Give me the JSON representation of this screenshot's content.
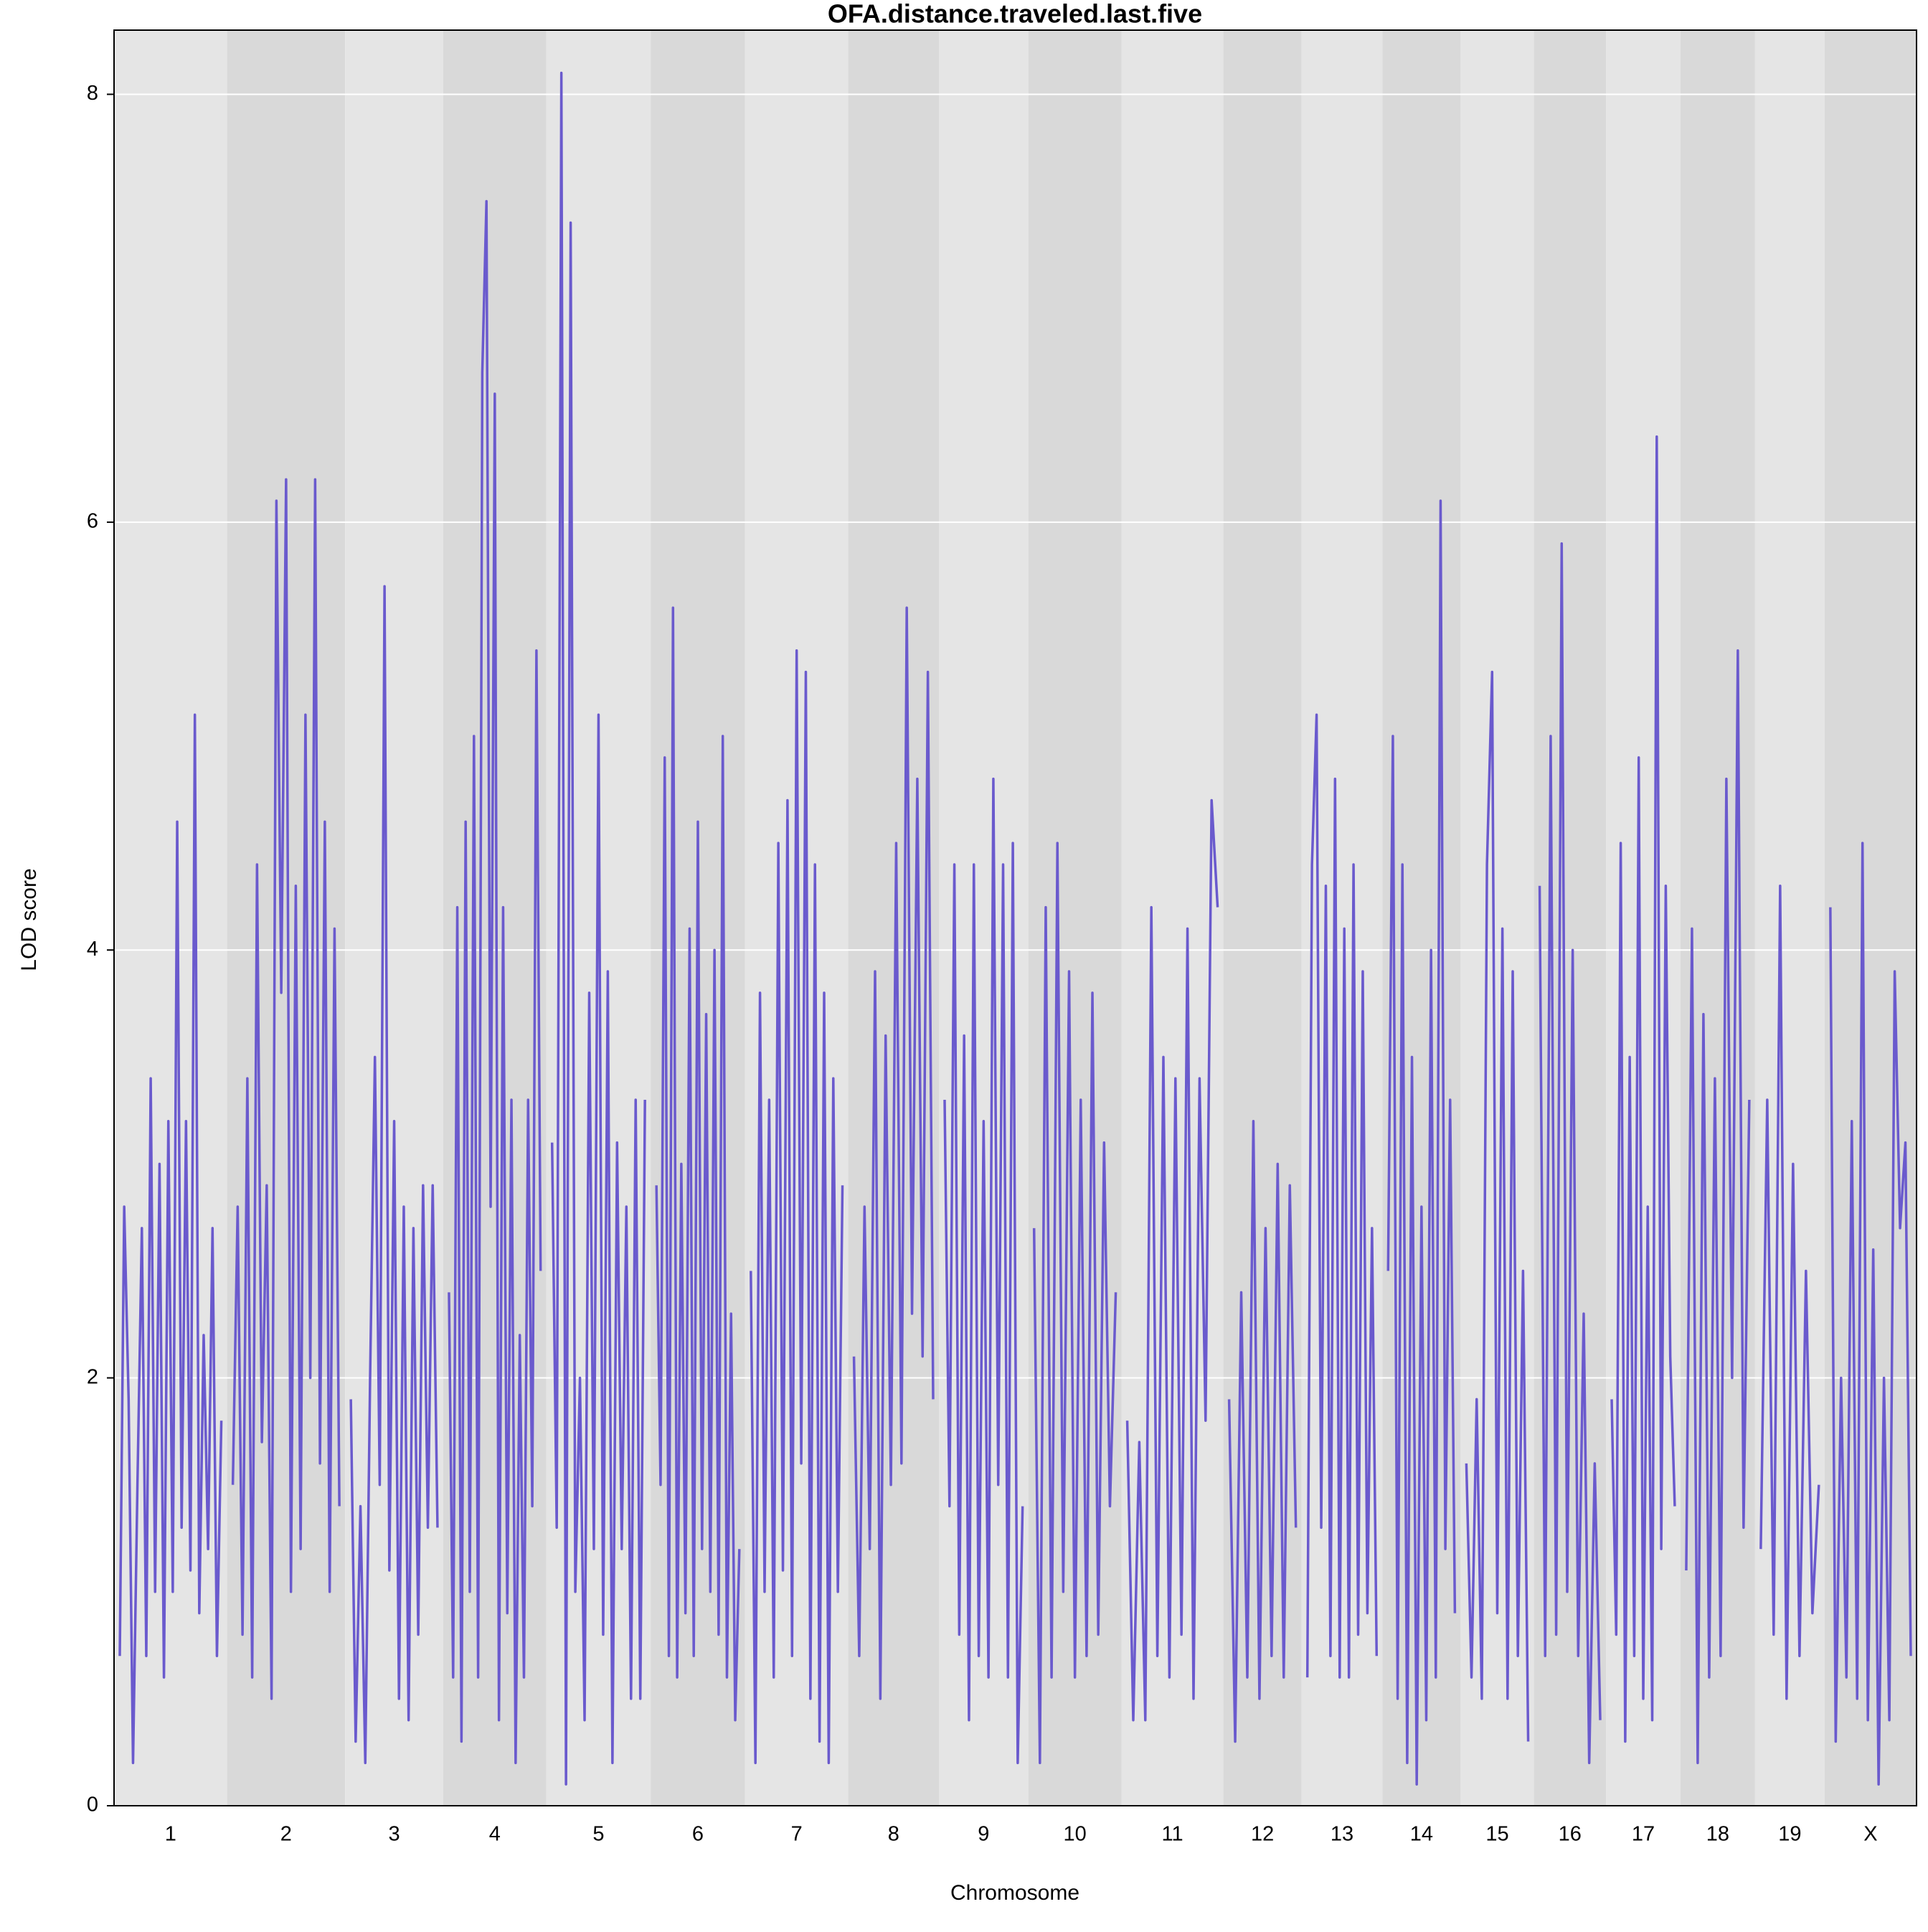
{
  "chart_data": {
    "type": "line",
    "title": "OFA.distance.traveled.last.five",
    "x_label": "Chromosome",
    "y_label": "LOD score",
    "color": "#6a5acd",
    "ylim": [
      0,
      8.3
    ],
    "yticks": [
      0,
      2,
      4,
      6,
      8
    ],
    "grid": true,
    "chromosomes": [
      {
        "label": "1",
        "lod": [
          0.7,
          2.8,
          1.9,
          0.2,
          1.5,
          2.7,
          0.7,
          3.4,
          1.0,
          3.0,
          0.6,
          3.2,
          1.0,
          4.6,
          1.3,
          3.2,
          1.1,
          5.1,
          0.9,
          2.2,
          1.2,
          2.7,
          0.7,
          1.8
        ]
      },
      {
        "label": "2",
        "lod": [
          1.5,
          2.8,
          0.8,
          3.4,
          0.6,
          4.4,
          1.7,
          2.9,
          0.5,
          6.1,
          3.8,
          6.2,
          1.0,
          4.3,
          1.2,
          5.1,
          2.0,
          6.2,
          1.6,
          4.6,
          1.0,
          4.1,
          1.4
        ]
      },
      {
        "label": "3",
        "lod": [
          1.9,
          0.3,
          1.4,
          0.2,
          2.0,
          3.5,
          1.5,
          5.7,
          1.1,
          3.2,
          0.5,
          2.8,
          0.4,
          2.7,
          0.8,
          2.9,
          1.3,
          2.9,
          1.3
        ]
      },
      {
        "label": "4",
        "lod": [
          2.4,
          0.6,
          4.2,
          0.3,
          4.6,
          1.0,
          5.0,
          0.6,
          6.7,
          7.5,
          2.8,
          6.6,
          0.4,
          4.2,
          0.9,
          3.3,
          0.2,
          2.2,
          0.6,
          3.3,
          1.4,
          5.4,
          2.5
        ]
      },
      {
        "label": "5",
        "lod": [
          3.1,
          1.3,
          8.1,
          0.1,
          7.4,
          1.0,
          2.0,
          0.4,
          3.8,
          1.2,
          5.1,
          0.8,
          3.9,
          0.2,
          3.1,
          1.2,
          2.8,
          0.5,
          3.3,
          0.5,
          3.3
        ]
      },
      {
        "label": "6",
        "lod": [
          2.9,
          1.5,
          4.9,
          0.7,
          5.6,
          0.6,
          3.0,
          0.9,
          4.1,
          0.7,
          4.6,
          1.2,
          3.7,
          1.0,
          4.0,
          0.8,
          5.0,
          0.6,
          2.3,
          0.4,
          1.2
        ]
      },
      {
        "label": "7",
        "lod": [
          2.5,
          0.2,
          3.8,
          1.0,
          3.3,
          0.6,
          4.5,
          1.1,
          4.7,
          0.7,
          5.4,
          1.6,
          5.3,
          0.5,
          4.4,
          0.3,
          3.8,
          0.2,
          3.4,
          1.0,
          2.9
        ]
      },
      {
        "label": "8",
        "lod": [
          2.1,
          0.7,
          2.8,
          1.2,
          3.9,
          0.5,
          3.6,
          1.5,
          4.5,
          1.6,
          5.6,
          2.3,
          4.8,
          2.1,
          5.3,
          1.9
        ]
      },
      {
        "label": "9",
        "lod": [
          3.3,
          1.4,
          4.4,
          0.8,
          3.6,
          0.4,
          4.4,
          0.7,
          3.2,
          0.6,
          4.8,
          1.5,
          4.4,
          0.6,
          4.5,
          0.2,
          1.4
        ]
      },
      {
        "label": "10",
        "lod": [
          2.7,
          0.2,
          4.2,
          0.6,
          4.5,
          1.0,
          3.9,
          0.6,
          3.3,
          0.7,
          3.8,
          0.8,
          3.1,
          1.4,
          2.4
        ]
      },
      {
        "label": "11",
        "lod": [
          1.8,
          0.4,
          1.7,
          0.4,
          4.2,
          0.7,
          3.5,
          0.6,
          3.4,
          0.8,
          4.1,
          0.5,
          3.4,
          1.8,
          4.7,
          4.2
        ]
      },
      {
        "label": "12",
        "lod": [
          1.9,
          0.3,
          2.4,
          0.6,
          3.2,
          0.5,
          2.7,
          0.7,
          3.0,
          0.6,
          2.9,
          1.3
        ]
      },
      {
        "label": "13",
        "lod": [
          0.6,
          4.4,
          5.1,
          1.3,
          4.3,
          0.7,
          4.8,
          0.6,
          4.1,
          0.6,
          4.4,
          0.8,
          3.9,
          0.9,
          2.7,
          0.7
        ]
      },
      {
        "label": "14",
        "lod": [
          2.5,
          5.0,
          0.5,
          4.4,
          0.2,
          3.5,
          0.1,
          2.8,
          0.4,
          4.0,
          0.6,
          6.1,
          1.2,
          3.3,
          0.9
        ]
      },
      {
        "label": "15",
        "lod": [
          1.6,
          0.6,
          1.9,
          0.5,
          4.4,
          5.3,
          0.9,
          4.1,
          0.5,
          3.9,
          0.7,
          2.5,
          0.3
        ]
      },
      {
        "label": "16",
        "lod": [
          4.3,
          0.7,
          5.0,
          0.8,
          5.9,
          1.0,
          4.0,
          0.7,
          2.3,
          0.2,
          1.6,
          0.4
        ]
      },
      {
        "label": "17",
        "lod": [
          1.9,
          0.8,
          4.5,
          0.3,
          3.5,
          0.7,
          4.9,
          0.5,
          2.8,
          0.4,
          6.4,
          1.2,
          4.3,
          2.1,
          1.4
        ]
      },
      {
        "label": "18",
        "lod": [
          1.1,
          4.1,
          0.2,
          3.7,
          0.6,
          3.4,
          0.7,
          4.8,
          2.0,
          5.4,
          1.3,
          3.3
        ]
      },
      {
        "label": "19",
        "lod": [
          1.2,
          3.3,
          0.8,
          4.3,
          0.5,
          3.0,
          0.7,
          2.5,
          0.9,
          1.5
        ]
      },
      {
        "label": "X",
        "lod": [
          4.2,
          0.3,
          2.0,
          0.6,
          3.2,
          0.5,
          4.5,
          0.4,
          2.6,
          0.1,
          2.0,
          0.4,
          3.9,
          2.7,
          3.1,
          0.7
        ]
      }
    ]
  }
}
